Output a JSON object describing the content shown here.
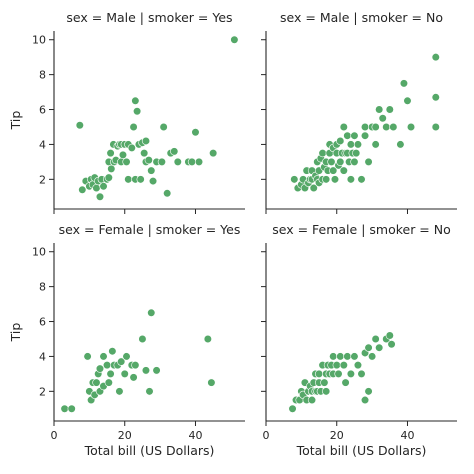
{
  "chart_data": {
    "type": "scatter",
    "layout": "facet-grid",
    "rows": 2,
    "cols": 2,
    "xlabel": "Total bill (US Dollars)",
    "ylabel": "Tip",
    "xlim": [
      0,
      54
    ],
    "ylim": [
      0.3,
      10.5
    ],
    "xticks": [
      0,
      20,
      40
    ],
    "yticks": [
      2,
      4,
      6,
      8,
      10
    ],
    "point_color": "#55a868",
    "grid": false,
    "panels": [
      {
        "title": "sex = Male | smoker = Yes",
        "points": [
          [
            7.3,
            5.1
          ],
          [
            8,
            1.4
          ],
          [
            9,
            1.9
          ],
          [
            10,
            1.6
          ],
          [
            10.5,
            2.0
          ],
          [
            11,
            1.7
          ],
          [
            11.5,
            2.1
          ],
          [
            12,
            1.5
          ],
          [
            12.5,
            1.9
          ],
          [
            13,
            1.0
          ],
          [
            13.5,
            2.0
          ],
          [
            14,
            1.6
          ],
          [
            15,
            2.0
          ],
          [
            15.5,
            2.1
          ],
          [
            15.5,
            3.0
          ],
          [
            16,
            3.5
          ],
          [
            16.2,
            2.6
          ],
          [
            16.8,
            4.0
          ],
          [
            17,
            3.0
          ],
          [
            17.5,
            3.1
          ],
          [
            18,
            3.9
          ],
          [
            18.5,
            4.0
          ],
          [
            19,
            4.0
          ],
          [
            19,
            3.0
          ],
          [
            19.5,
            3.4
          ],
          [
            20,
            4.0
          ],
          [
            20.5,
            3.0
          ],
          [
            21,
            4.0
          ],
          [
            21,
            2.0
          ],
          [
            22,
            3.8
          ],
          [
            22.5,
            5.0
          ],
          [
            23,
            6.5
          ],
          [
            23,
            2.0
          ],
          [
            23.5,
            5.9
          ],
          [
            24,
            4.0
          ],
          [
            24.5,
            2.0
          ],
          [
            25,
            4.1
          ],
          [
            25.5,
            3.5
          ],
          [
            26,
            4.2
          ],
          [
            26,
            3.0
          ],
          [
            26.8,
            3.1
          ],
          [
            27.5,
            2.5
          ],
          [
            28,
            1.9
          ],
          [
            29,
            3.0
          ],
          [
            30.5,
            3.0
          ],
          [
            31,
            5.0
          ],
          [
            32,
            1.2
          ],
          [
            33,
            3.5
          ],
          [
            34,
            3.6
          ],
          [
            35,
            3.0
          ],
          [
            38,
            3.0
          ],
          [
            39,
            3.0
          ],
          [
            40,
            4.7
          ],
          [
            41,
            3.0
          ],
          [
            45,
            3.5
          ],
          [
            51,
            10.0
          ]
        ]
      },
      {
        "title": "sex = Male | smoker = No",
        "points": [
          [
            8,
            2.0
          ],
          [
            9,
            1.5
          ],
          [
            10,
            1.7
          ],
          [
            10.5,
            2.0
          ],
          [
            11,
            1.5
          ],
          [
            11.5,
            2.5
          ],
          [
            12,
            1.8
          ],
          [
            12.5,
            2.0
          ],
          [
            13,
            2.0
          ],
          [
            13,
            2.5
          ],
          [
            13.5,
            1.5
          ],
          [
            14,
            2.2
          ],
          [
            14.5,
            3.0
          ],
          [
            14.5,
            2.0
          ],
          [
            15,
            2.5
          ],
          [
            15,
            1.8
          ],
          [
            15.5,
            3.2
          ],
          [
            16,
            2.0
          ],
          [
            16,
            3.5
          ],
          [
            16.5,
            2.7
          ],
          [
            17,
            3.0
          ],
          [
            17,
            2.0
          ],
          [
            17.5,
            2.5
          ],
          [
            18,
            3.5
          ],
          [
            18,
            4.0
          ],
          [
            18.5,
            3.0
          ],
          [
            19,
            2.5
          ],
          [
            19,
            3.8
          ],
          [
            19.5,
            2.0
          ],
          [
            20,
            3.5
          ],
          [
            20,
            4.0
          ],
          [
            20.5,
            2.8
          ],
          [
            21,
            3.0
          ],
          [
            21,
            4.2
          ],
          [
            21.5,
            3.5
          ],
          [
            22,
            2.5
          ],
          [
            22,
            5.0
          ],
          [
            22.5,
            3.5
          ],
          [
            23,
            3.5
          ],
          [
            23,
            4.5
          ],
          [
            23.5,
            3.0
          ],
          [
            24,
            2.0
          ],
          [
            24,
            4.0
          ],
          [
            24.5,
            3.5
          ],
          [
            25,
            4.5
          ],
          [
            25,
            3.0
          ],
          [
            25.5,
            3.5
          ],
          [
            26,
            4.0
          ],
          [
            27,
            2.0
          ],
          [
            28,
            4.5
          ],
          [
            28,
            5.0
          ],
          [
            29,
            3.0
          ],
          [
            30,
            5.0
          ],
          [
            31,
            5.0
          ],
          [
            31,
            4.0
          ],
          [
            32,
            6.0
          ],
          [
            33,
            5.5
          ],
          [
            34,
            5.0
          ],
          [
            35,
            6.0
          ],
          [
            36,
            5.0
          ],
          [
            38,
            4.0
          ],
          [
            39,
            7.5
          ],
          [
            40,
            6.5
          ],
          [
            41,
            5.0
          ],
          [
            48,
            9.0
          ],
          [
            48,
            6.7
          ],
          [
            48,
            5.0
          ]
        ]
      },
      {
        "title": "sex = Female | smoker = Yes",
        "points": [
          [
            3,
            1.0
          ],
          [
            5,
            1.0
          ],
          [
            9.5,
            4.0
          ],
          [
            10,
            2.0
          ],
          [
            10.5,
            1.5
          ],
          [
            11,
            2.5
          ],
          [
            11.5,
            1.8
          ],
          [
            12,
            2.5
          ],
          [
            12.5,
            3.0
          ],
          [
            13,
            2.0
          ],
          [
            13,
            3.3
          ],
          [
            14,
            2.3
          ],
          [
            14,
            4.0
          ],
          [
            15,
            3.5
          ],
          [
            15.5,
            2.5
          ],
          [
            16,
            3.0
          ],
          [
            16.5,
            4.3
          ],
          [
            17,
            3.5
          ],
          [
            18,
            3.5
          ],
          [
            18.5,
            2.0
          ],
          [
            19,
            3.7
          ],
          [
            20,
            3.0
          ],
          [
            20.5,
            4.0
          ],
          [
            22,
            3.5
          ],
          [
            22.5,
            2.8
          ],
          [
            23,
            3.5
          ],
          [
            25,
            5.0
          ],
          [
            26,
            3.2
          ],
          [
            27,
            2.0
          ],
          [
            27.5,
            6.5
          ],
          [
            29,
            3.2
          ],
          [
            43.5,
            5.0
          ],
          [
            44.5,
            2.5
          ]
        ]
      },
      {
        "title": "sex = Female | smoker = No",
        "points": [
          [
            7.5,
            1.0
          ],
          [
            8.5,
            1.5
          ],
          [
            9.5,
            1.5
          ],
          [
            10,
            2.0
          ],
          [
            10.5,
            1.8
          ],
          [
            11,
            2.5
          ],
          [
            11.5,
            1.5
          ],
          [
            12,
            2.0
          ],
          [
            12.5,
            2.3
          ],
          [
            13,
            2.0
          ],
          [
            13,
            1.5
          ],
          [
            13.5,
            2.5
          ],
          [
            14,
            2.0
          ],
          [
            14,
            3.0
          ],
          [
            14.5,
            2.0
          ],
          [
            15,
            2.5
          ],
          [
            15,
            3.0
          ],
          [
            15.5,
            2.0
          ],
          [
            16,
            3.5
          ],
          [
            16.5,
            2.5
          ],
          [
            17,
            3.0
          ],
          [
            17,
            2.0
          ],
          [
            17.5,
            3.5
          ],
          [
            18,
            3.0
          ],
          [
            18.5,
            3.5
          ],
          [
            19,
            3.0
          ],
          [
            19,
            4.0
          ],
          [
            20,
            3.5
          ],
          [
            20.5,
            3.0
          ],
          [
            21,
            4.0
          ],
          [
            22,
            3.5
          ],
          [
            22.5,
            2.5
          ],
          [
            23,
            4.0
          ],
          [
            24,
            3.0
          ],
          [
            25,
            4.0
          ],
          [
            26,
            3.5
          ],
          [
            27,
            3.0
          ],
          [
            28,
            4.2
          ],
          [
            29,
            4.5
          ],
          [
            29,
            2.0
          ],
          [
            30,
            4.0
          ],
          [
            31,
            5.0
          ],
          [
            32,
            4.5
          ],
          [
            34,
            5.0
          ],
          [
            35,
            5.2
          ],
          [
            35.5,
            4.7
          ],
          [
            28,
            1.5
          ]
        ]
      }
    ]
  }
}
